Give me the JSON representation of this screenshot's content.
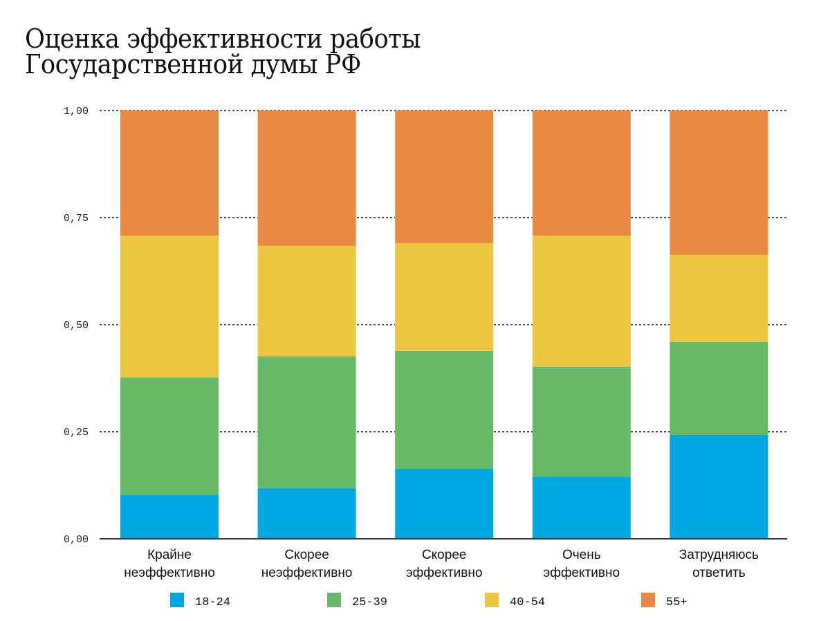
{
  "chart_data": {
    "type": "bar",
    "stacked": true,
    "title": [
      "Оценка эффективности работы",
      "Государственной думы РФ"
    ],
    "xlabel": "",
    "ylabel": "",
    "ylim": [
      0,
      1
    ],
    "yticks": [
      0,
      0.25,
      0.5,
      0.75,
      1.0
    ],
    "ytick_labels": [
      "0,00",
      "0,25",
      "0,50",
      "0,75",
      "1,00"
    ],
    "grid": true,
    "legend_position": "bottom",
    "categories": [
      [
        "Крайне",
        "неэффективно"
      ],
      [
        "Скорее",
        "неэффективно"
      ],
      [
        "Скорее",
        "эффективно"
      ],
      [
        "Очень",
        "эффективно"
      ],
      [
        "Затрудняюсь",
        "ответить"
      ]
    ],
    "series": [
      {
        "name": "18-24",
        "color": "#00a8e2",
        "values": [
          0.103,
          0.118,
          0.163,
          0.145,
          0.242
        ]
      },
      {
        "name": "25-39",
        "color": "#68b967",
        "values": [
          0.274,
          0.308,
          0.276,
          0.257,
          0.218
        ]
      },
      {
        "name": "40-54",
        "color": "#ecc640",
        "values": [
          0.331,
          0.258,
          0.251,
          0.306,
          0.203
        ]
      },
      {
        "name": "55+",
        "color": "#e88a43",
        "values": [
          0.292,
          0.316,
          0.31,
          0.292,
          0.337
        ]
      }
    ]
  }
}
